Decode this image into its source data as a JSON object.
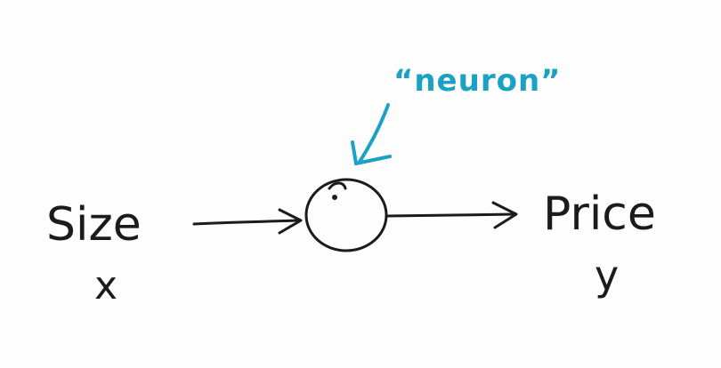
{
  "diagram": {
    "neuron_label": "“neuron”",
    "input_word": "Size",
    "input_symbol": "x",
    "output_word": "Price",
    "output_symbol": "y",
    "colors": {
      "ink": "#1b1b1b",
      "annotation": "#1ba1c4",
      "background": "#fdfdfd"
    }
  }
}
